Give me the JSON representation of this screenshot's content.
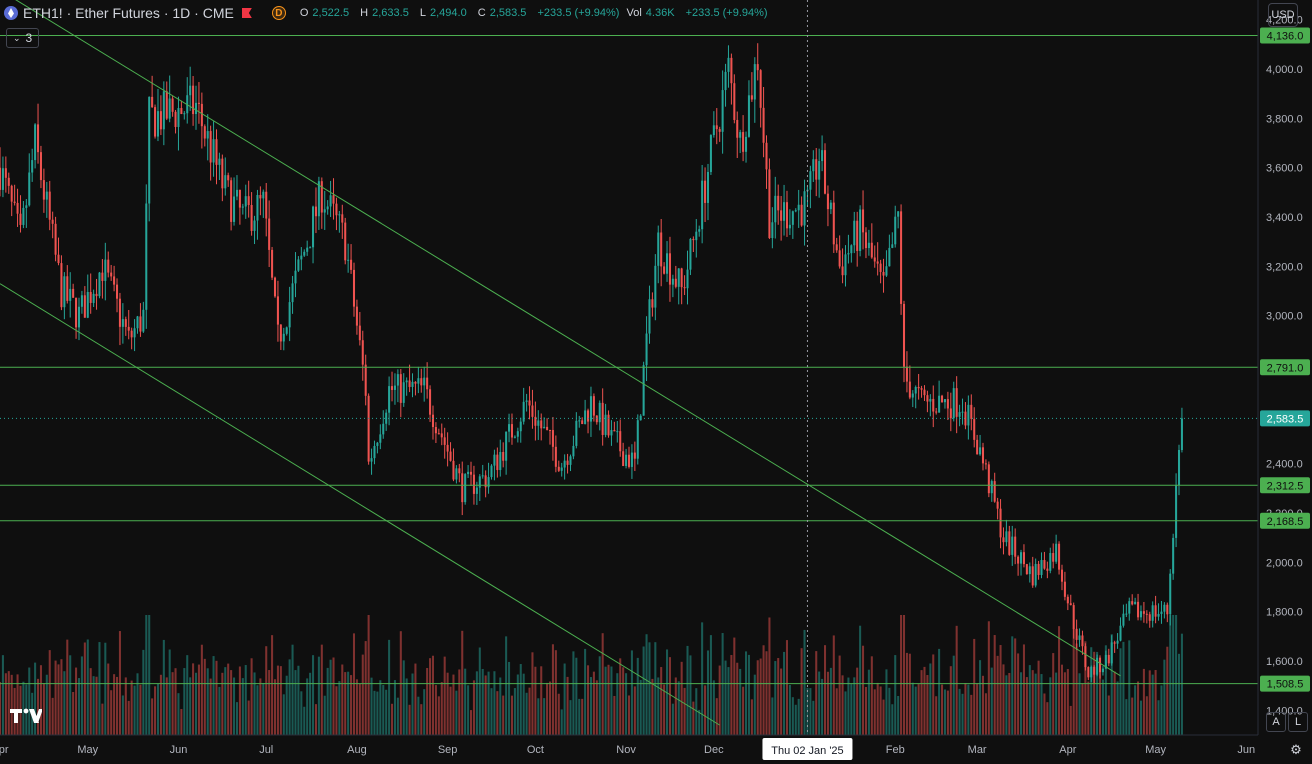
{
  "header": {
    "symbol": "ETH1! · Ether Futures · 1D · CME",
    "badge": "D",
    "open_label": "O",
    "open": "2,522.5",
    "high_label": "H",
    "high": "2,633.5",
    "low_label": "L",
    "low": "2,494.0",
    "close_label": "C",
    "close": "2,583.5",
    "change": "+233.5 (+9.94%)",
    "vol_label": "Vol",
    "vol": "4.36K",
    "vol_change": "+233.5 (+9.94%)",
    "indicators_count": "3",
    "currency": "USD",
    "btn_auto": "A",
    "btn_log": "L"
  },
  "colors": {
    "up": "#26a69a",
    "down": "#ef5350",
    "drawing": "#4caf50",
    "background": "#0f0f0f",
    "last_price": "#26a69a"
  },
  "chart_data": {
    "type": "candlestick",
    "y_axis": {
      "ylim": [
        1300,
        4280
      ],
      "ticks": [
        1400,
        1600,
        1800,
        2000,
        2200,
        2400,
        2600,
        2800,
        3000,
        3200,
        3400,
        3600,
        3800,
        4000,
        4200
      ],
      "tick_labels": [
        "1,400.0",
        "1,600.0",
        "1,800.0",
        "2,000.0",
        "2,200.0",
        "2,400.0",
        "2,600.0",
        "2,800.0",
        "3,000.0",
        "3,200.0",
        "3,400.0",
        "3,600.0",
        "3,800.0",
        "4,000.0",
        "4,200.0"
      ]
    },
    "x_axis": {
      "range": [
        "2024-04-01",
        "2025-06-05"
      ],
      "month_ticks": [
        {
          "date": "2024-04-01",
          "label": "Apr"
        },
        {
          "date": "2024-05-01",
          "label": "May"
        },
        {
          "date": "2024-06-01",
          "label": "Jun"
        },
        {
          "date": "2024-07-01",
          "label": "Jul"
        },
        {
          "date": "2024-08-01",
          "label": "Aug"
        },
        {
          "date": "2024-09-01",
          "label": "Sep"
        },
        {
          "date": "2024-10-01",
          "label": "Oct"
        },
        {
          "date": "2024-11-01",
          "label": "Nov"
        },
        {
          "date": "2024-12-01",
          "label": "Dec"
        },
        {
          "date": "2025-02-01",
          "label": "Feb"
        },
        {
          "date": "2025-03-01",
          "label": "Mar"
        },
        {
          "date": "2025-04-01",
          "label": "Apr"
        },
        {
          "date": "2025-05-01",
          "label": "May"
        },
        {
          "date": "2025-06-01",
          "label": "Jun"
        }
      ],
      "crosshair": {
        "date": "2025-01-02",
        "label": "Thu 02 Jan '25"
      }
    },
    "price_path": [
      [
        "2024-04-01",
        3600
      ],
      [
        "2024-04-08",
        3300
      ],
      [
        "2024-04-13",
        3700
      ],
      [
        "2024-04-22",
        3100
      ],
      [
        "2024-04-28",
        3000
      ],
      [
        "2024-05-06",
        3200
      ],
      [
        "2024-05-15",
        2900
      ],
      [
        "2024-05-20",
        3000
      ],
      [
        "2024-05-22",
        3800
      ],
      [
        "2024-06-07",
        3850
      ],
      [
        "2024-06-17",
        3500
      ],
      [
        "2024-06-23",
        3400
      ],
      [
        "2024-06-30",
        3450
      ],
      [
        "2024-07-05",
        2900
      ],
      [
        "2024-07-10",
        3100
      ],
      [
        "2024-07-20",
        3500
      ],
      [
        "2024-07-28",
        3300
      ],
      [
        "2024-08-04",
        2700
      ],
      [
        "2024-08-05",
        2400
      ],
      [
        "2024-08-12",
        2700
      ],
      [
        "2024-08-24",
        2700
      ],
      [
        "2024-09-06",
        2300
      ],
      [
        "2024-09-15",
        2350
      ],
      [
        "2024-09-28",
        2650
      ],
      [
        "2024-10-10",
        2400
      ],
      [
        "2024-10-20",
        2650
      ],
      [
        "2024-10-27",
        2500
      ],
      [
        "2024-11-04",
        2400
      ],
      [
        "2024-11-08",
        2900
      ],
      [
        "2024-11-12",
        3300
      ],
      [
        "2024-11-20",
        3100
      ],
      [
        "2024-11-24",
        3300
      ],
      [
        "2024-12-06",
        4000
      ],
      [
        "2024-12-10",
        3700
      ],
      [
        "2024-12-16",
        4050
      ],
      [
        "2024-12-20",
        3400
      ],
      [
        "2025-01-02",
        3450
      ],
      [
        "2025-01-06",
        3650
      ],
      [
        "2025-01-13",
        3200
      ],
      [
        "2025-01-20",
        3350
      ],
      [
        "2025-01-28",
        3100
      ],
      [
        "2025-02-02",
        3400
      ],
      [
        "2025-02-04",
        2750
      ],
      [
        "2025-02-10",
        2650
      ],
      [
        "2025-02-24",
        2650
      ],
      [
        "2025-03-02",
        2450
      ],
      [
        "2025-03-10",
        2100
      ],
      [
        "2025-03-20",
        1950
      ],
      [
        "2025-03-28",
        2050
      ],
      [
        "2025-04-02",
        1800
      ],
      [
        "2025-04-08",
        1550
      ],
      [
        "2025-04-14",
        1600
      ],
      [
        "2025-04-22",
        1800
      ],
      [
        "2025-05-05",
        1800
      ],
      [
        "2025-05-08",
        2300
      ],
      [
        "2025-05-10",
        2583.5
      ]
    ],
    "horizontal_levels": [
      4136.0,
      2791.0,
      2312.5,
      2168.5,
      1508.5
    ],
    "level_labels": [
      "4,136.0",
      "2,791.0",
      "2,312.5",
      "2,168.5",
      "1,508.5"
    ],
    "last_price": 2583.5,
    "last_price_label": "2,583.5",
    "trendlines": [
      {
        "from": [
          "2024-04-01",
          4320
        ],
        "to": [
          "2025-04-19",
          1540
        ]
      },
      {
        "from": [
          "2024-04-01",
          3130
        ],
        "to": [
          "2024-12-03",
          1340
        ]
      }
    ],
    "volume": {
      "note": "daily volume bars along bottom"
    }
  }
}
